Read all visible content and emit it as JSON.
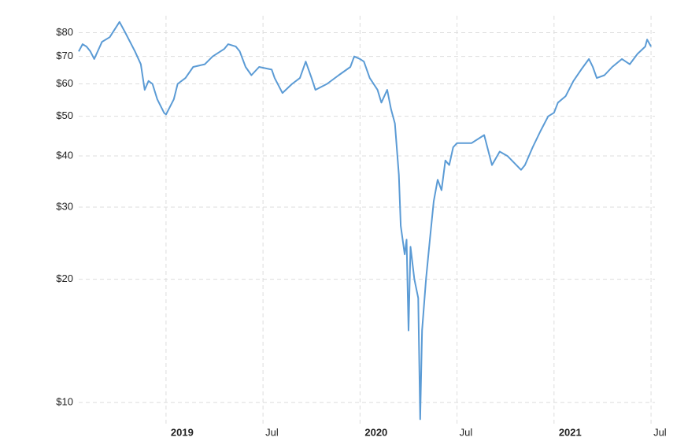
{
  "chart_data": {
    "type": "line",
    "x": [
      2018.55,
      2018.57,
      2018.59,
      2018.61,
      2018.63,
      2018.67,
      2018.71,
      2018.76,
      2018.79,
      2018.84,
      2018.87,
      2018.89,
      2018.91,
      2018.93,
      2018.955,
      2018.99,
      2019.0,
      2019.04,
      2019.06,
      2019.1,
      2019.14,
      2019.2,
      2019.24,
      2019.3,
      2019.32,
      2019.36,
      2019.38,
      2019.41,
      2019.44,
      2019.48,
      2019.545,
      2019.56,
      2019.6,
      2019.65,
      2019.69,
      2019.72,
      2019.75,
      2019.77,
      2019.83,
      2019.89,
      2019.95,
      2019.97,
      2020.0,
      2020.02,
      2020.05,
      2020.09,
      2020.11,
      2020.14,
      2020.16,
      2020.18,
      2020.2,
      2020.21,
      2020.23,
      2020.24,
      2020.25,
      2020.26,
      2020.28,
      2020.3,
      2020.31,
      2020.32,
      2020.34,
      2020.36,
      2020.38,
      2020.4,
      2020.42,
      2020.44,
      2020.46,
      2020.48,
      2020.5,
      2020.575,
      2020.64,
      2020.68,
      2020.72,
      2020.76,
      2020.83,
      2020.85,
      2020.89,
      2020.93,
      2020.97,
      2021.0,
      2021.02,
      2021.06,
      2021.1,
      2021.14,
      2021.18,
      2021.2,
      2021.22,
      2021.26,
      2021.3,
      2021.35,
      2021.39,
      2021.43,
      2021.47,
      2021.48,
      2021.5
    ],
    "values": [
      72,
      75,
      74,
      72,
      69,
      76,
      78,
      85,
      80,
      72,
      67,
      58,
      61,
      60,
      55,
      51,
      50.5,
      55,
      60,
      62,
      66,
      67,
      70,
      73,
      75,
      74,
      72,
      66,
      63,
      66,
      65,
      62,
      57,
      60,
      62,
      68,
      62,
      58,
      60,
      63,
      66,
      70,
      69,
      68,
      62,
      58,
      54,
      58,
      52,
      48,
      36,
      27,
      23,
      25,
      15,
      24,
      20,
      18,
      9.1,
      15,
      20,
      25,
      31,
      35,
      33,
      39,
      38,
      42,
      43,
      43,
      45,
      38,
      41,
      40,
      37,
      38,
      42,
      46,
      50,
      51,
      54,
      56,
      61,
      65,
      69,
      66,
      62,
      63,
      66,
      69,
      67,
      71,
      74,
      77,
      74
    ],
    "color": "#5b9bd5",
    "xlim": [
      2018.55,
      2021.52
    ],
    "xticks": [
      2019,
      {
        "value": 2019.5,
        "label": "Jul"
      },
      2020,
      {
        "value": 2020.5,
        "label": "Jul"
      },
      2021,
      {
        "value": 2021.5,
        "label": "Jul"
      }
    ],
    "ylim": [
      8.8,
      88
    ],
    "yticks": [
      {
        "value": 10,
        "label": "$10"
      },
      {
        "value": 20,
        "label": "$20"
      },
      {
        "value": 30,
        "label": "$30"
      },
      {
        "value": 40,
        "label": "$40"
      },
      {
        "value": 50,
        "label": "$50"
      },
      {
        "value": 60,
        "label": "$60"
      },
      {
        "value": 70,
        "label": "$70"
      },
      {
        "value": 80,
        "label": "$80"
      }
    ],
    "log_scale": true,
    "grid": true
  }
}
